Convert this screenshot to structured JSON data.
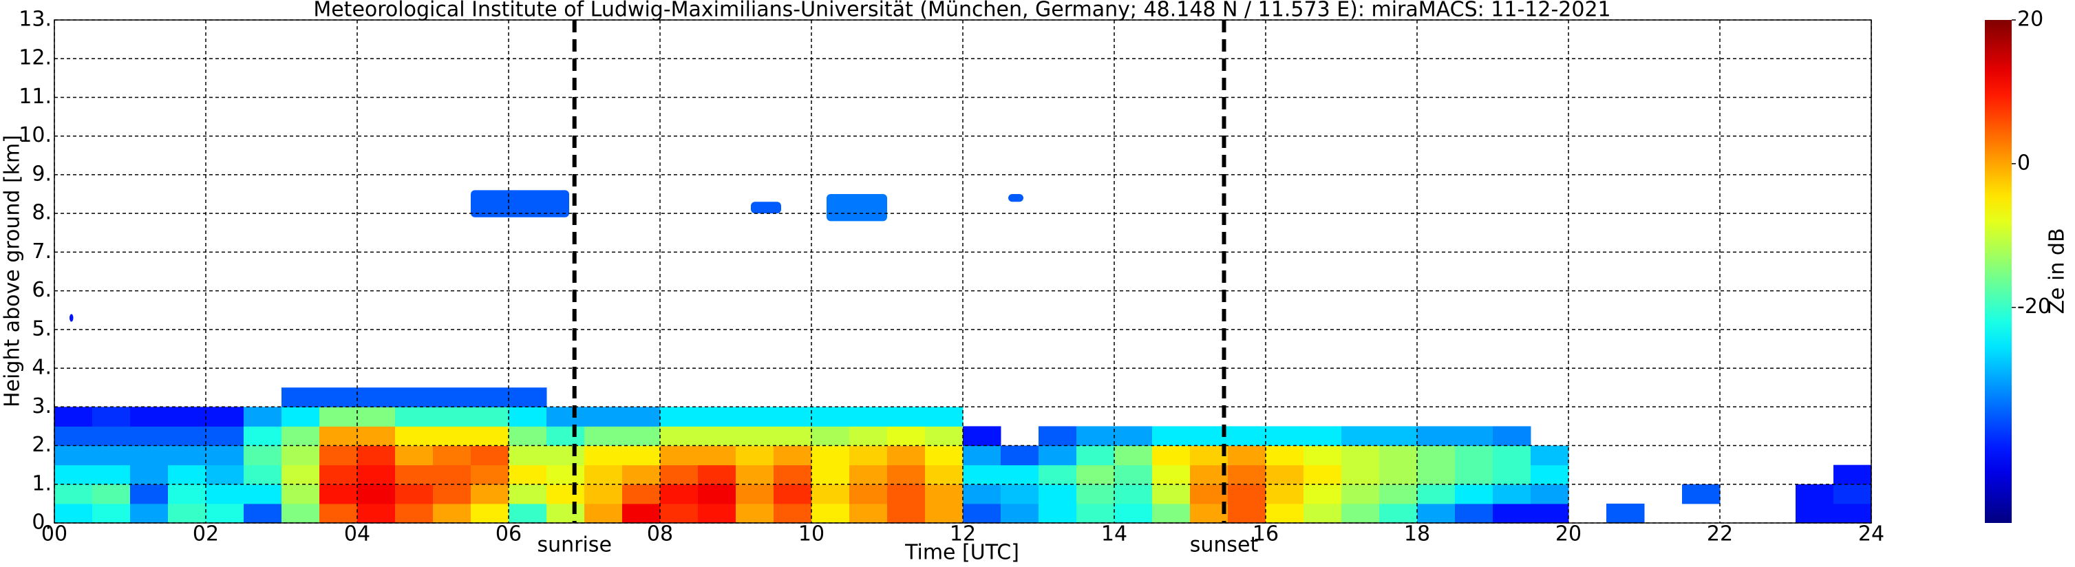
{
  "chart_data": {
    "type": "heatmap",
    "title": "Meteorological Institute of Ludwig-Maximilians-Universität (München, Germany; 48.148 N / 11.573 E):    miraMACS: 11-12-2021",
    "x_label": "Time [UTC]",
    "y_label": "Height above ground [km]",
    "colorbar_label": "Ze in dB",
    "colormap": "jet",
    "grid": true,
    "xlim": [
      0,
      24
    ],
    "xticks": [
      {
        "value": 0,
        "label": "00"
      },
      {
        "value": 2,
        "label": "02"
      },
      {
        "value": 4,
        "label": "04"
      },
      {
        "value": 6,
        "label": "06"
      },
      {
        "value": 8,
        "label": "08"
      },
      {
        "value": 10,
        "label": "10"
      },
      {
        "value": 12,
        "label": "12"
      },
      {
        "value": 14,
        "label": "14"
      },
      {
        "value": 16,
        "label": "16"
      },
      {
        "value": 18,
        "label": "18"
      },
      {
        "value": 20,
        "label": "20"
      },
      {
        "value": 22,
        "label": "22"
      },
      {
        "value": 24,
        "label": "24"
      }
    ],
    "ylim": [
      0,
      13
    ],
    "yticks": [
      {
        "value": 0,
        "label": "0."
      },
      {
        "value": 1,
        "label": "1."
      },
      {
        "value": 2,
        "label": "2."
      },
      {
        "value": 3,
        "label": "3."
      },
      {
        "value": 4,
        "label": "4."
      },
      {
        "value": 5,
        "label": "5."
      },
      {
        "value": 6,
        "label": "6."
      },
      {
        "value": 7,
        "label": "7."
      },
      {
        "value": 8,
        "label": "8."
      },
      {
        "value": 9,
        "label": "9."
      },
      {
        "value": 10,
        "label": "10."
      },
      {
        "value": 11,
        "label": "11."
      },
      {
        "value": 12,
        "label": "12."
      },
      {
        "value": 13,
        "label": "13."
      }
    ],
    "clim": [
      -50,
      20
    ],
    "cticks": [
      -20,
      0,
      20
    ],
    "x_edges": [
      0,
      0.5,
      1,
      1.5,
      2,
      2.5,
      3,
      3.5,
      4,
      4.5,
      5,
      5.5,
      6,
      6.5,
      7,
      7.5,
      8,
      8.5,
      9,
      9.5,
      10,
      10.5,
      11,
      11.5,
      12,
      12.5,
      13,
      13.5,
      14,
      14.5,
      15,
      15.5,
      16,
      16.5,
      17,
      17.5,
      18,
      18.5,
      19,
      19.5,
      20,
      20.5,
      21,
      21.5,
      22,
      22.5,
      23,
      23.5,
      24
    ],
    "y_edges": [
      0,
      0.5,
      1,
      1.5,
      2,
      2.5,
      3,
      3.5
    ],
    "z": [
      [
        -25,
        -22,
        -30,
        -20,
        -22,
        -35,
        -15,
        5,
        10,
        5,
        0,
        -5,
        -20,
        -10,
        0,
        12,
        8,
        10,
        0,
        5,
        -5,
        0,
        5,
        0,
        -35,
        -30,
        -25,
        -20,
        -22,
        -15,
        0,
        5,
        -5,
        -10,
        -15,
        -20,
        -30,
        -35,
        -40,
        -40,
        null,
        -35,
        null,
        null,
        null,
        null,
        -40,
        -40
      ],
      [
        -20,
        -18,
        -35,
        -22,
        -25,
        -25,
        -12,
        10,
        12,
        8,
        5,
        0,
        -10,
        -5,
        -2,
        5,
        10,
        12,
        2,
        8,
        -3,
        2,
        5,
        0,
        -30,
        -28,
        -25,
        -18,
        -20,
        -10,
        2,
        5,
        -3,
        -8,
        -12,
        -15,
        -20,
        -25,
        -28,
        -30,
        null,
        null,
        null,
        -35,
        null,
        null,
        -40,
        -38
      ],
      [
        -25,
        -25,
        -30,
        -25,
        -28,
        -20,
        -10,
        8,
        10,
        5,
        5,
        3,
        -5,
        -8,
        -3,
        0,
        5,
        8,
        0,
        5,
        -5,
        0,
        3,
        -3,
        -25,
        -25,
        -20,
        -15,
        -18,
        -8,
        0,
        3,
        -2,
        -5,
        -10,
        -12,
        -15,
        -18,
        -20,
        -25,
        null,
        null,
        null,
        null,
        null,
        null,
        null,
        -40
      ],
      [
        -30,
        -30,
        -30,
        -30,
        -30,
        -18,
        -12,
        5,
        8,
        0,
        3,
        5,
        -10,
        -10,
        -5,
        -5,
        0,
        0,
        -3,
        0,
        -5,
        -3,
        0,
        -5,
        -30,
        -35,
        -30,
        -20,
        -15,
        -5,
        -3,
        0,
        -5,
        -8,
        -10,
        -12,
        -15,
        -18,
        -20,
        -28,
        null,
        null,
        null,
        null,
        null,
        null,
        null,
        null
      ],
      [
        -35,
        -35,
        -35,
        -35,
        -35,
        -22,
        -15,
        0,
        0,
        -5,
        -5,
        -5,
        -15,
        -20,
        -15,
        -15,
        -10,
        -10,
        -10,
        -10,
        -12,
        -10,
        -8,
        -10,
        -40,
        null,
        -35,
        -30,
        -30,
        -25,
        -25,
        -25,
        -25,
        -25,
        -28,
        -28,
        -30,
        -30,
        -32,
        null,
        null,
        null,
        null,
        null,
        null,
        null,
        null,
        null
      ],
      [
        -40,
        -38,
        -40,
        -40,
        -40,
        -30,
        -25,
        -15,
        -15,
        -20,
        -20,
        -20,
        -25,
        -30,
        -30,
        -30,
        -25,
        -25,
        -25,
        -25,
        -25,
        -25,
        -25,
        -25,
        null,
        null,
        null,
        null,
        null,
        null,
        null,
        null,
        null,
        null,
        null,
        null,
        null,
        null,
        null,
        null,
        null,
        null,
        null,
        null,
        null,
        null,
        null,
        null
      ],
      [
        null,
        null,
        null,
        null,
        null,
        null,
        -35,
        -35,
        -35,
        -35,
        -35,
        -35,
        -35,
        null,
        null,
        null,
        null,
        null,
        null,
        null,
        null,
        null,
        null,
        null,
        null,
        null,
        null,
        null,
        null,
        null,
        null,
        null,
        null,
        null,
        null,
        null,
        null,
        null,
        null,
        null,
        null,
        null,
        null,
        null,
        null,
        null,
        null,
        null
      ]
    ],
    "patches": [
      {
        "x": [
          5.5,
          6.8
        ],
        "y": [
          7.9,
          8.6
        ],
        "value": -35
      },
      {
        "x": [
          9.2,
          9.6
        ],
        "y": [
          8.0,
          8.3
        ],
        "value": -35
      },
      {
        "x": [
          10.2,
          11.0
        ],
        "y": [
          7.8,
          8.5
        ],
        "value": -33
      },
      {
        "x": [
          12.6,
          12.8
        ],
        "y": [
          8.3,
          8.5
        ],
        "value": -35
      },
      {
        "x": [
          0.2,
          0.25
        ],
        "y": [
          5.2,
          5.4
        ],
        "value": -40
      }
    ],
    "vlines": [
      {
        "x": 6.87,
        "label": "sunrise"
      },
      {
        "x": 15.45,
        "label": "sunset"
      }
    ]
  }
}
